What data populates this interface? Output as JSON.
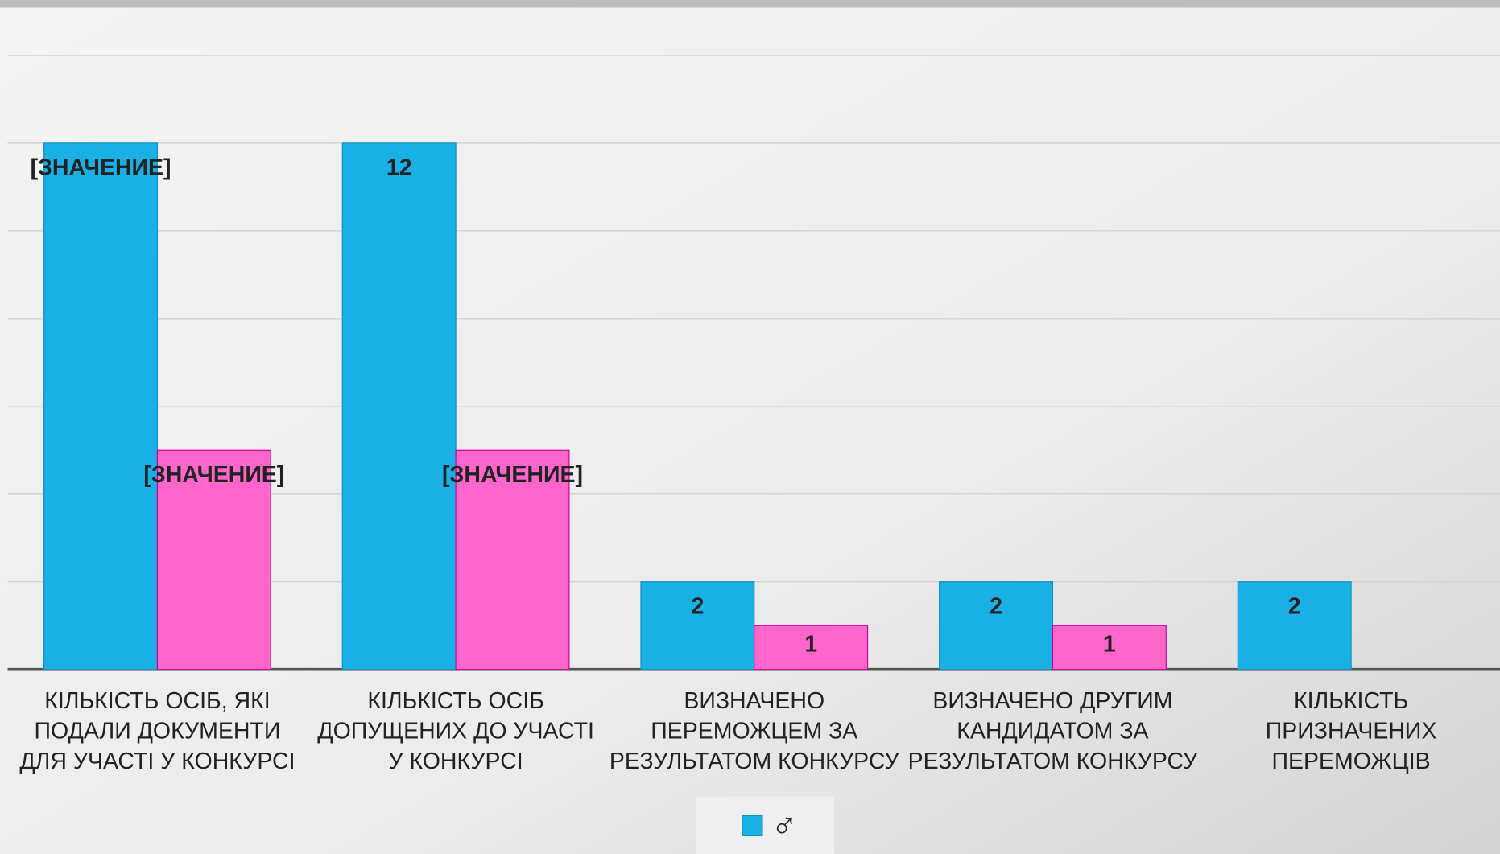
{
  "chart_data": {
    "type": "bar",
    "categories": [
      "КІЛЬКІСТЬ ОСІБ, ЯКІ ПОДАЛИ ДОКУМЕНТИ ДЛЯ УЧАСТІ У КОНКУРСІ",
      "КІЛЬКІСТЬ ОСІБ ДОПУЩЕНИХ ДО УЧАСТІ У КОНКУРСІ",
      "ВИЗНАЧЕНО ПЕРЕМОЖЦЕМ ЗА РЕЗУЛЬТАТОМ КОНКУРСУ",
      "ВИЗНАЧЕНО ДРУГИМ КАНДИДАТОМ ЗА РЕЗУЛЬТАТОМ КОНКУРСУ",
      "КІЛЬКІСТЬ ПРИЗНАЧЕНИХ ПЕРЕМОЖЦІВ"
    ],
    "series": [
      {
        "name": "♂",
        "color": "#19b0e6",
        "values": [
          12,
          12,
          2,
          2,
          2
        ],
        "value_labels": [
          "[ЗНАЧЕНИЕ]",
          "12",
          "2",
          "2",
          "2"
        ]
      },
      {
        "color": "#ff66cc",
        "values": [
          5,
          5,
          1,
          1,
          null
        ],
        "value_labels": [
          "[ЗНАЧЕНИЕ]",
          "[ЗНАЧЕНИЕ]",
          "1",
          "1",
          null
        ]
      }
    ],
    "ylim": [
      0,
      14
    ],
    "yticks": [
      0,
      2,
      4,
      6,
      8,
      10,
      12,
      14
    ],
    "grid": true,
    "legend": "bottom"
  }
}
